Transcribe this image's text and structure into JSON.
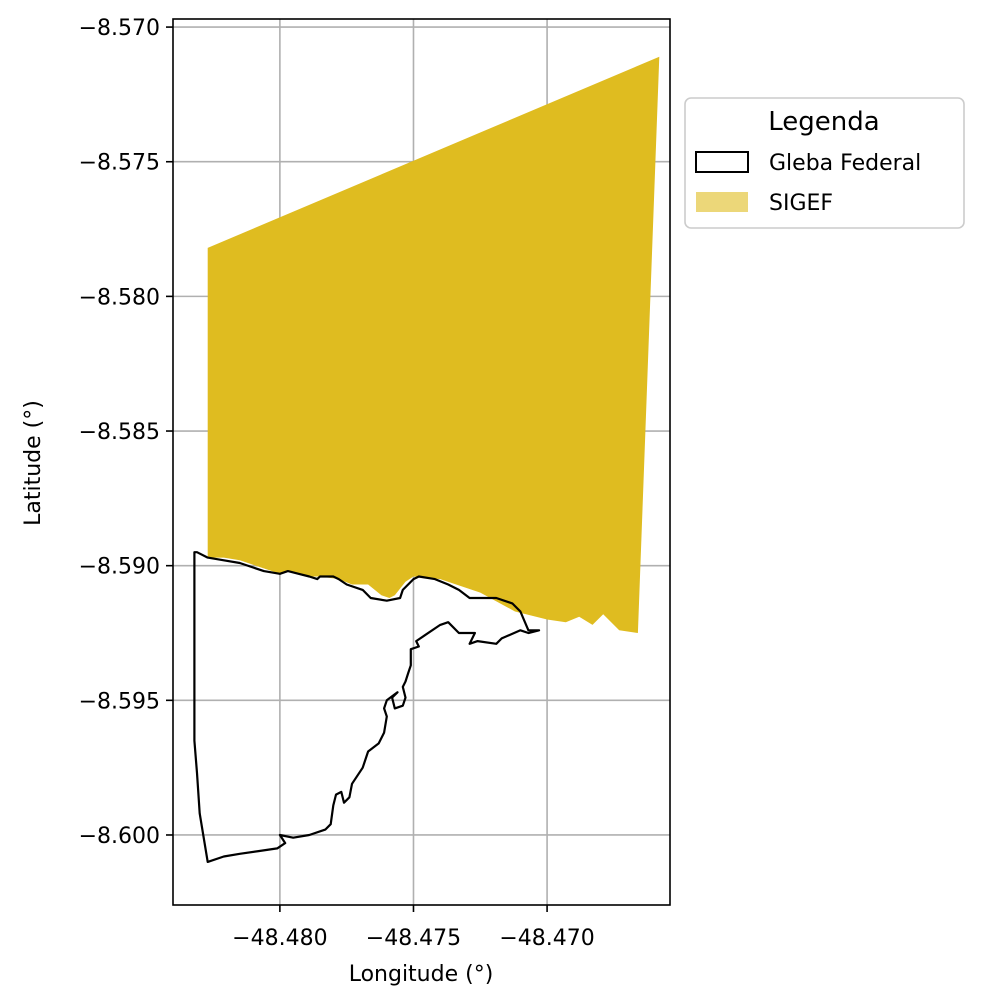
{
  "chart_data": {
    "type": "map",
    "xlabel": "Longitude (°)",
    "ylabel": "Latitude (°)",
    "xlim": [
      -48.484,
      -48.4654
    ],
    "ylim": [
      -8.6026,
      -8.5697
    ],
    "grid": true,
    "xticks": [
      {
        "value": -48.48,
        "label": "−48.480"
      },
      {
        "value": -48.475,
        "label": "−48.475"
      },
      {
        "value": -48.47,
        "label": "−48.470"
      }
    ],
    "yticks": [
      {
        "value": -8.57,
        "label": "−8.570"
      },
      {
        "value": -8.575,
        "label": "−8.575"
      },
      {
        "value": -8.58,
        "label": "−8.580"
      },
      {
        "value": -8.585,
        "label": "−8.585"
      },
      {
        "value": -8.59,
        "label": "−8.590"
      },
      {
        "value": -8.595,
        "label": "−8.595"
      },
      {
        "value": -8.6,
        "label": "−8.600"
      }
    ],
    "legend": {
      "title": "Legenda",
      "placement": "outside-top-right",
      "entries": [
        {
          "label": "Gleba Federal",
          "style": "outline",
          "edge_color": "#000000",
          "fill": "none"
        },
        {
          "label": "SIGEF",
          "style": "fill",
          "fill": "#DFBC20",
          "alpha": 0.6
        }
      ]
    },
    "series": [
      {
        "name": "SIGEF",
        "kind": "polygon",
        "fill": "#DFBC20",
        "stroke": "none",
        "points": [
          [
            -48.4827,
            -8.5782
          ],
          [
            -48.4658,
            -8.5711
          ],
          [
            -48.4666,
            -8.5925
          ],
          [
            -48.4673,
            -8.5924
          ],
          [
            -48.4679,
            -8.5918
          ],
          [
            -48.4683,
            -8.5922
          ],
          [
            -48.4688,
            -8.5919
          ],
          [
            -48.4693,
            -8.5921
          ],
          [
            -48.47,
            -8.592
          ],
          [
            -48.4712,
            -8.5917
          ],
          [
            -48.4725,
            -8.591
          ],
          [
            -48.474,
            -8.5905
          ],
          [
            -48.475,
            -8.5904
          ],
          [
            -48.4753,
            -8.5906
          ],
          [
            -48.4757,
            -8.5911
          ],
          [
            -48.4759,
            -8.5912
          ],
          [
            -48.4762,
            -8.5911
          ],
          [
            -48.4767,
            -8.5907
          ],
          [
            -48.4773,
            -8.5907
          ],
          [
            -48.4778,
            -8.5905
          ],
          [
            -48.4785,
            -8.5904
          ],
          [
            -48.479,
            -8.5904
          ],
          [
            -48.4796,
            -8.5902
          ],
          [
            -48.48,
            -8.5903
          ],
          [
            -48.4806,
            -8.5901
          ],
          [
            -48.4815,
            -8.5898
          ],
          [
            -48.4821,
            -8.5897
          ],
          [
            -48.4827,
            -8.5897
          ]
        ]
      },
      {
        "name": "Gleba Federal",
        "kind": "polygon",
        "fill": "none",
        "stroke": "#000000",
        "points": [
          [
            -48.4831,
            -8.5895
          ],
          [
            -48.4827,
            -8.5897
          ],
          [
            -48.4821,
            -8.5898
          ],
          [
            -48.4815,
            -8.5899
          ],
          [
            -48.4806,
            -8.5902
          ],
          [
            -48.48,
            -8.5903
          ],
          [
            -48.4797,
            -8.5902
          ],
          [
            -48.4793,
            -8.5903
          ],
          [
            -48.4789,
            -8.5904
          ],
          [
            -48.4786,
            -8.5905
          ],
          [
            -48.4785,
            -8.5904
          ],
          [
            -48.478,
            -8.5904
          ],
          [
            -48.4778,
            -8.5905
          ],
          [
            -48.4775,
            -8.5907
          ],
          [
            -48.4769,
            -8.5909
          ],
          [
            -48.4766,
            -8.5912
          ],
          [
            -48.476,
            -8.5913
          ],
          [
            -48.4755,
            -8.5912
          ],
          [
            -48.4754,
            -8.5909
          ],
          [
            -48.475,
            -8.5905
          ],
          [
            -48.4748,
            -8.5904
          ],
          [
            -48.4742,
            -8.5905
          ],
          [
            -48.4737,
            -8.5907
          ],
          [
            -48.4733,
            -8.5909
          ],
          [
            -48.4729,
            -8.5912
          ],
          [
            -48.4726,
            -8.5912
          ],
          [
            -48.4719,
            -8.5912
          ],
          [
            -48.4713,
            -8.5914
          ],
          [
            -48.471,
            -8.5917
          ],
          [
            -48.4707,
            -8.5924
          ],
          [
            -48.4703,
            -8.5924
          ],
          [
            -48.4707,
            -8.5925
          ],
          [
            -48.471,
            -8.5924
          ],
          [
            -48.4717,
            -8.5927
          ],
          [
            -48.4719,
            -8.5929
          ],
          [
            -48.4726,
            -8.5928
          ],
          [
            -48.4729,
            -8.5929
          ],
          [
            -48.4727,
            -8.5925
          ],
          [
            -48.4733,
            -8.5925
          ],
          [
            -48.4737,
            -8.5921
          ],
          [
            -48.474,
            -8.5922
          ],
          [
            -48.4746,
            -8.5926
          ],
          [
            -48.4749,
            -8.5928
          ],
          [
            -48.4748,
            -8.593
          ],
          [
            -48.4751,
            -8.5931
          ],
          [
            -48.4751,
            -8.5937
          ],
          [
            -48.4752,
            -8.594
          ],
          [
            -48.4753,
            -8.5943
          ],
          [
            -48.4754,
            -8.5945
          ],
          [
            -48.4753,
            -8.5949
          ],
          [
            -48.4754,
            -8.5952
          ],
          [
            -48.4757,
            -8.5953
          ],
          [
            -48.4758,
            -8.5949
          ],
          [
            -48.4756,
            -8.5947
          ],
          [
            -48.476,
            -8.595
          ],
          [
            -48.4761,
            -8.5953
          ],
          [
            -48.476,
            -8.5956
          ],
          [
            -48.4761,
            -8.5962
          ],
          [
            -48.4763,
            -8.5966
          ],
          [
            -48.4767,
            -8.5969
          ],
          [
            -48.4769,
            -8.5975
          ],
          [
            -48.4771,
            -8.5978
          ],
          [
            -48.4773,
            -8.5981
          ],
          [
            -48.4774,
            -8.5986
          ],
          [
            -48.4776,
            -8.5988
          ],
          [
            -48.4777,
            -8.5984
          ],
          [
            -48.4779,
            -8.5985
          ],
          [
            -48.478,
            -8.5989
          ],
          [
            -48.4781,
            -8.5996
          ],
          [
            -48.4783,
            -8.5998
          ],
          [
            -48.4789,
            -8.6
          ],
          [
            -48.4795,
            -8.6001
          ],
          [
            -48.48,
            -8.6
          ],
          [
            -48.4798,
            -8.6003
          ],
          [
            -48.4801,
            -8.6005
          ],
          [
            -48.4808,
            -8.6006
          ],
          [
            -48.4815,
            -8.6007
          ],
          [
            -48.4821,
            -8.6008
          ],
          [
            -48.4827,
            -8.601
          ],
          [
            -48.483,
            -8.5992
          ],
          [
            -48.4831,
            -8.5977
          ],
          [
            -48.4832,
            -8.5965
          ],
          [
            -48.4832,
            -8.5931
          ],
          [
            -48.4832,
            -8.5895
          ]
        ]
      }
    ]
  }
}
